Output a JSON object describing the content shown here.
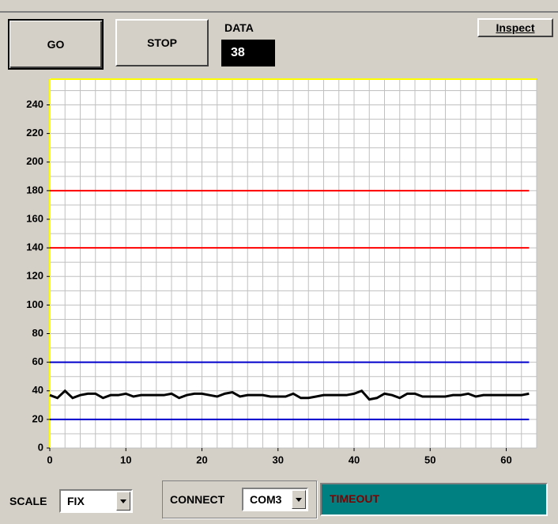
{
  "buttons": {
    "go": "GO",
    "stop": "STOP",
    "inspect": "Inspect"
  },
  "data_display": {
    "label": "DATA",
    "value": "38"
  },
  "scale": {
    "label": "SCALE",
    "value": "FIX"
  },
  "connect": {
    "label": "CONNECT",
    "value": "COM3"
  },
  "status": "TIMEOUT",
  "chart_data": {
    "type": "line",
    "x": [
      0,
      1,
      2,
      3,
      4,
      5,
      6,
      7,
      8,
      9,
      10,
      11,
      12,
      13,
      14,
      15,
      16,
      17,
      18,
      19,
      20,
      21,
      22,
      23,
      24,
      25,
      26,
      27,
      28,
      29,
      30,
      31,
      32,
      33,
      34,
      35,
      36,
      37,
      38,
      39,
      40,
      41,
      42,
      43,
      44,
      45,
      46,
      47,
      48,
      49,
      50,
      51,
      52,
      53,
      54,
      55,
      56,
      57,
      58,
      59,
      60,
      61,
      62,
      63
    ],
    "series": [
      {
        "color": "#000000",
        "values": [
          37,
          35,
          40,
          35,
          37,
          38,
          38,
          35,
          37,
          37,
          38,
          36,
          37,
          37,
          37,
          37,
          38,
          35,
          37,
          38,
          38,
          37,
          36,
          38,
          39,
          36,
          37,
          37,
          37,
          36,
          36,
          36,
          38,
          35,
          35,
          36,
          37,
          37,
          37,
          37,
          38,
          40,
          34,
          35,
          38,
          37,
          35,
          38,
          38,
          36,
          36,
          36,
          36,
          37,
          37,
          38,
          36,
          37,
          37,
          37,
          37,
          37,
          37,
          38
        ]
      }
    ],
    "reference_lines": [
      {
        "value": 180,
        "color": "#ff0000"
      },
      {
        "value": 140,
        "color": "#ff0000"
      },
      {
        "value": 60,
        "color": "#0000cc"
      },
      {
        "value": 20,
        "color": "#0000cc"
      }
    ],
    "xlim": [
      0,
      64
    ],
    "ylim": [
      0,
      258
    ],
    "xticks": [
      0,
      10,
      20,
      30,
      40,
      50,
      60
    ],
    "yticks": [
      0,
      20,
      40,
      60,
      80,
      100,
      120,
      140,
      160,
      180,
      200,
      220,
      240
    ],
    "grid": {
      "x_step": 2,
      "y_step": 10
    }
  }
}
